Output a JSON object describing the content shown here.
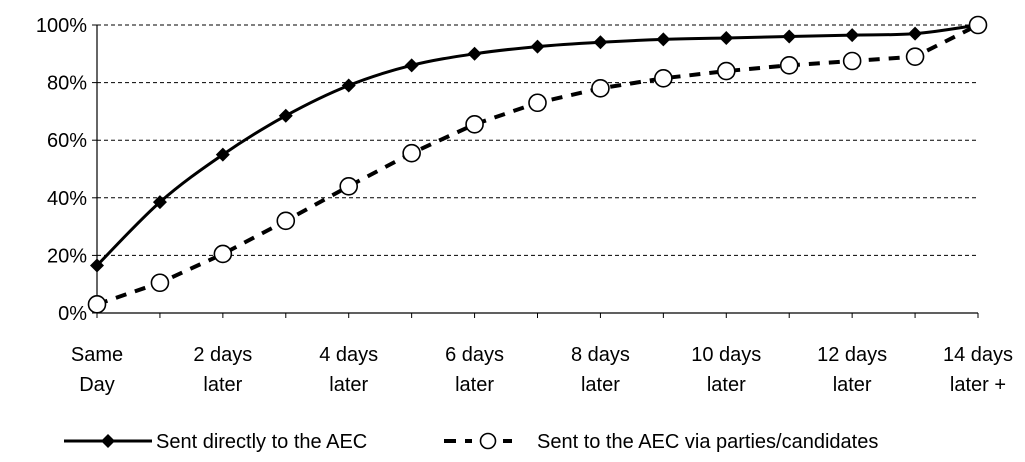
{
  "chart_data": {
    "type": "line",
    "title": "",
    "xlabel": "",
    "ylabel": "",
    "ylim": [
      0,
      100
    ],
    "y_ticks": [
      "0%",
      "20%",
      "40%",
      "60%",
      "80%",
      "100%"
    ],
    "grid": "horizontal dashed",
    "legend_position": "bottom",
    "categories": [
      "0",
      "1",
      "2",
      "3",
      "4",
      "5",
      "6",
      "7",
      "8",
      "9",
      "10",
      "11",
      "12",
      "13",
      "14"
    ],
    "x_tick_labels": [
      {
        "category": "0",
        "line1": "Same",
        "line2": "Day"
      },
      {
        "category": "2",
        "line1": "2 days",
        "line2": "later"
      },
      {
        "category": "4",
        "line1": "4 days",
        "line2": "later"
      },
      {
        "category": "6",
        "line1": "6 days",
        "line2": "later"
      },
      {
        "category": "8",
        "line1": "8 days",
        "line2": "later"
      },
      {
        "category": "10",
        "line1": "10 days",
        "line2": "later"
      },
      {
        "category": "12",
        "line1": "12 days",
        "line2": "later"
      },
      {
        "category": "14",
        "line1": "14 days",
        "line2": "later +"
      }
    ],
    "series": [
      {
        "name": "Sent directly to the AEC",
        "style": "solid",
        "marker": "diamond",
        "color": "#000000",
        "values": [
          16.5,
          38.5,
          55,
          68.5,
          79,
          86,
          90,
          92.5,
          94,
          95,
          95.5,
          96,
          96.5,
          97,
          100
        ]
      },
      {
        "name": "Sent to the AEC via parties/candidates",
        "style": "dashed",
        "marker": "open-circle",
        "color": "#000000",
        "values": [
          3,
          10.5,
          20.5,
          32,
          44,
          55.5,
          65.5,
          73,
          78,
          81.5,
          84,
          86,
          87.5,
          89,
          100
        ]
      }
    ]
  }
}
